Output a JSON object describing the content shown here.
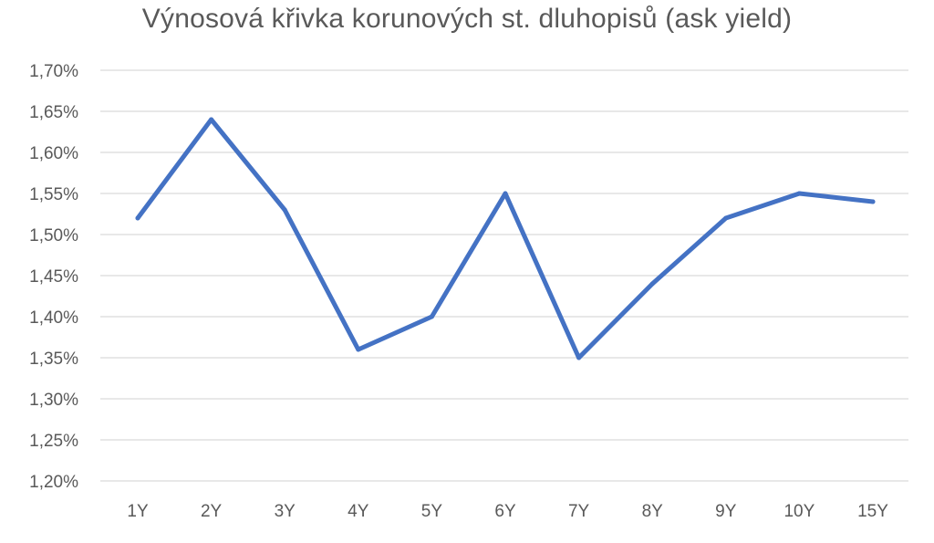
{
  "chart_data": {
    "type": "line",
    "title": "Výnosová křivka korunových st. dluhopisů (ask yield)",
    "xlabel": "",
    "ylabel": "",
    "categories": [
      "1Y",
      "2Y",
      "3Y",
      "4Y",
      "5Y",
      "6Y",
      "7Y",
      "8Y",
      "9Y",
      "10Y",
      "15Y"
    ],
    "series": [
      {
        "values": [
          1.52,
          1.64,
          1.53,
          1.36,
          1.4,
          1.55,
          1.35,
          1.44,
          1.52,
          1.55,
          1.54
        ]
      }
    ],
    "ylim": [
      1.2,
      1.7
    ],
    "y_ticks": [
      "1,70%",
      "1,65%",
      "1,60%",
      "1,55%",
      "1,50%",
      "1,45%",
      "1,40%",
      "1,35%",
      "1,30%",
      "1,25%",
      "1,20%"
    ],
    "grid": true,
    "legend": "none",
    "colors": {
      "line": "#4472c4",
      "grid": "#d9d9d9",
      "text": "#595959"
    }
  }
}
